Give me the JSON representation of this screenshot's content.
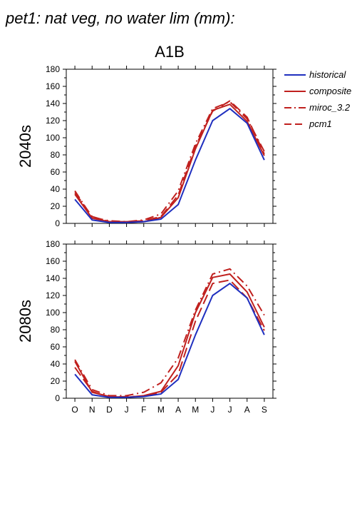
{
  "figure": {
    "title": "pet1: nat veg, no water lim (mm):",
    "scenario_title": "A1B"
  },
  "legend": {
    "placement": "top-right",
    "entries": [
      {
        "name": "historical",
        "color": "#1f2fbf",
        "dash": "solid"
      },
      {
        "name": "composite",
        "color": "#c0201e",
        "dash": "solid"
      },
      {
        "name": "miroc_3.2",
        "color": "#c0201e",
        "dash": "dashdot"
      },
      {
        "name": "pcm1",
        "color": "#c0201e",
        "dash": "dash"
      }
    ]
  },
  "chart_data": [
    {
      "type": "line",
      "panel_label": "2040s",
      "categories": [
        "O",
        "N",
        "D",
        "J",
        "F",
        "M",
        "A",
        "M",
        "J",
        "J",
        "A",
        "S"
      ],
      "ylim": [
        0,
        180
      ],
      "yticks": [
        0,
        20,
        40,
        60,
        80,
        100,
        120,
        140,
        160,
        180
      ],
      "series": [
        {
          "name": "historical",
          "values": [
            28,
            4,
            1,
            1,
            2,
            5,
            22,
            74,
            120,
            134,
            117,
            74
          ]
        },
        {
          "name": "composite",
          "values": [
            34,
            6,
            2,
            1,
            2,
            7,
            30,
            87,
            132,
            139,
            119,
            79
          ]
        },
        {
          "name": "miroc_3.2",
          "values": [
            38,
            7,
            3,
            2,
            4,
            11,
            38,
            93,
            134,
            142,
            122,
            84
          ]
        },
        {
          "name": "pcm1",
          "values": [
            36,
            8,
            2,
            2,
            3,
            8,
            33,
            90,
            131,
            143,
            124,
            81
          ]
        }
      ]
    },
    {
      "type": "line",
      "panel_label": "2080s",
      "categories": [
        "O",
        "N",
        "D",
        "J",
        "F",
        "M",
        "A",
        "M",
        "J",
        "J",
        "A",
        "S"
      ],
      "ylim": [
        0,
        180
      ],
      "yticks": [
        0,
        20,
        40,
        60,
        80,
        100,
        120,
        140,
        160,
        180
      ],
      "series": [
        {
          "name": "historical",
          "values": [
            28,
            4,
            1,
            1,
            2,
            5,
            22,
            74,
            120,
            134,
            117,
            74
          ]
        },
        {
          "name": "composite",
          "values": [
            43,
            7,
            2,
            1,
            3,
            8,
            38,
            100,
            141,
            145,
            124,
            83
          ]
        },
        {
          "name": "miroc_3.2",
          "values": [
            45,
            10,
            3,
            3,
            7,
            18,
            47,
            103,
            145,
            151,
            131,
            97
          ]
        },
        {
          "name": "pcm1",
          "values": [
            36,
            8,
            1,
            2,
            2,
            7,
            28,
            90,
            134,
            138,
            117,
            79
          ]
        }
      ]
    }
  ]
}
